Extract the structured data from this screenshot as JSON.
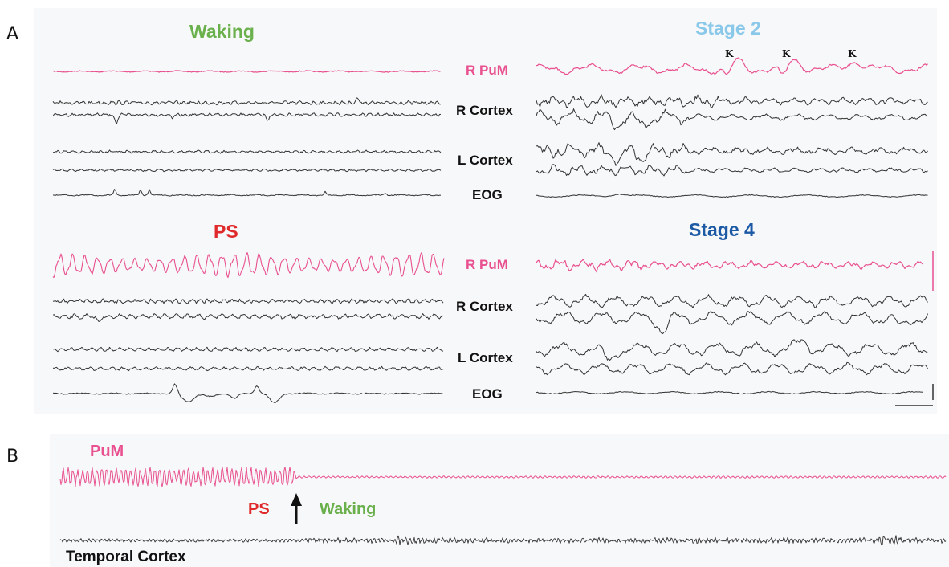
{
  "colors": {
    "pum": "#e8508f",
    "eeg": "#333333",
    "waking": "#6ab04c",
    "stage2": "#8ac8ea",
    "ps": "#e0292b",
    "stage4": "#1d5aa6"
  },
  "panelA": {
    "letter": "A",
    "titles": {
      "waking": "Waking",
      "stage2": "Stage 2",
      "ps": "PS",
      "stage4": "Stage 4"
    },
    "channels": {
      "r_pum": "R PuM",
      "r_cortex": "R Cortex",
      "l_cortex": "L Cortex",
      "eog": "EOG"
    },
    "k_label": "K"
  },
  "panelB": {
    "letter": "B",
    "pum_label": "PuM",
    "ps_label": "PS",
    "waking_label": "Waking",
    "cortex_label": "Temporal Cortex",
    "arrow_icon": "arrow-up-icon"
  }
}
